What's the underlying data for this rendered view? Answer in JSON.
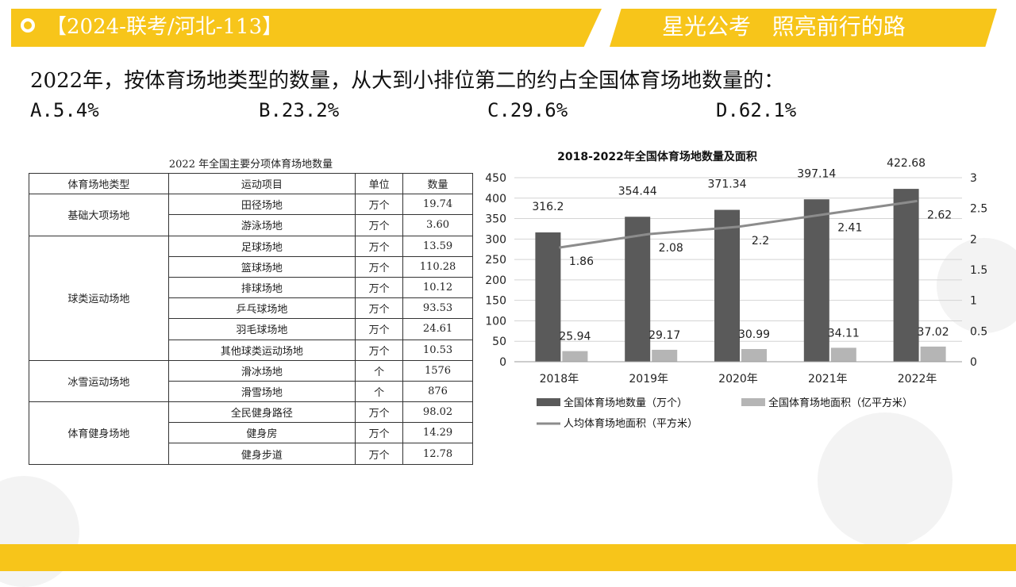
{
  "header": {
    "tag": "【2024-联考/河北-113】",
    "slogan": "星光公考   照亮前行的路"
  },
  "question": {
    "text": "2022年，按体育场地类型的数量，从大到小排位第二的约占全国体育场地数量的：",
    "options": [
      "A.5.4%",
      "B.23.2%",
      "C.29.6%",
      "D.62.1%"
    ]
  },
  "table": {
    "title": "2022 年全国主要分项体育场地数量",
    "headers": [
      "体育场地类型",
      "运动项目",
      "单位",
      "数量"
    ],
    "groups": [
      {
        "category": "基础大项场地",
        "rows": [
          [
            "田径场地",
            "万个",
            "19.74"
          ],
          [
            "游泳场地",
            "万个",
            "3.60"
          ]
        ]
      },
      {
        "category": "球类运动场地",
        "rows": [
          [
            "足球场地",
            "万个",
            "13.59"
          ],
          [
            "篮球场地",
            "万个",
            "110.28"
          ],
          [
            "排球场地",
            "万个",
            "10.12"
          ],
          [
            "乒乓球场地",
            "万个",
            "93.53"
          ],
          [
            "羽毛球场地",
            "万个",
            "24.61"
          ],
          [
            "其他球类运动场地",
            "万个",
            "10.53"
          ]
        ]
      },
      {
        "category": "冰雪运动场地",
        "rows": [
          [
            "滑冰场地",
            "个",
            "1576"
          ],
          [
            "滑雪场地",
            "个",
            "876"
          ]
        ]
      },
      {
        "category": "体育健身场地",
        "rows": [
          [
            "全民健身路径",
            "万个",
            "98.02"
          ],
          [
            "健身房",
            "万个",
            "14.29"
          ],
          [
            "健身步道",
            "万个",
            "12.78"
          ]
        ]
      }
    ]
  },
  "chart_data": {
    "type": "bar",
    "title": "2018-2022年全国体育场地数量及面积",
    "categories": [
      "2018年",
      "2019年",
      "2020年",
      "2021年",
      "2022年"
    ],
    "series": [
      {
        "name": "全国体育场地数量（万个）",
        "type": "bar",
        "axis": "left",
        "color": "#5a5a5a",
        "values": [
          316.2,
          354.44,
          371.34,
          397.14,
          422.68
        ],
        "labels": [
          "316.2",
          "354.44",
          "371.34",
          "397.14",
          "422.68"
        ]
      },
      {
        "name": "全国体育场地面积（亿平方米）",
        "type": "bar",
        "axis": "left",
        "color": "#b5b5b5",
        "values": [
          25.94,
          29.17,
          30.99,
          34.11,
          37.02
        ],
        "labels": [
          "25.94",
          "29.17",
          "30.99",
          "34.11",
          "37.02"
        ]
      },
      {
        "name": "人均体育场地面积（平方米）",
        "type": "line",
        "axis": "right",
        "color": "#8c8c8c",
        "values": [
          1.86,
          2.08,
          2.2,
          2.41,
          2.62
        ],
        "labels": [
          "1.86",
          "2.08",
          "2.2",
          "2.41",
          "2.62"
        ]
      }
    ],
    "ylim": [
      0,
      450
    ],
    "yticks": [
      "0",
      "50",
      "100",
      "150",
      "200",
      "250",
      "300",
      "350",
      "400",
      "450"
    ],
    "y2lim": [
      0,
      3
    ],
    "y2ticks": [
      "0",
      "0.5",
      "1",
      "1.5",
      "2",
      "2.5",
      "3"
    ],
    "grid": true,
    "legend": "bottom"
  }
}
